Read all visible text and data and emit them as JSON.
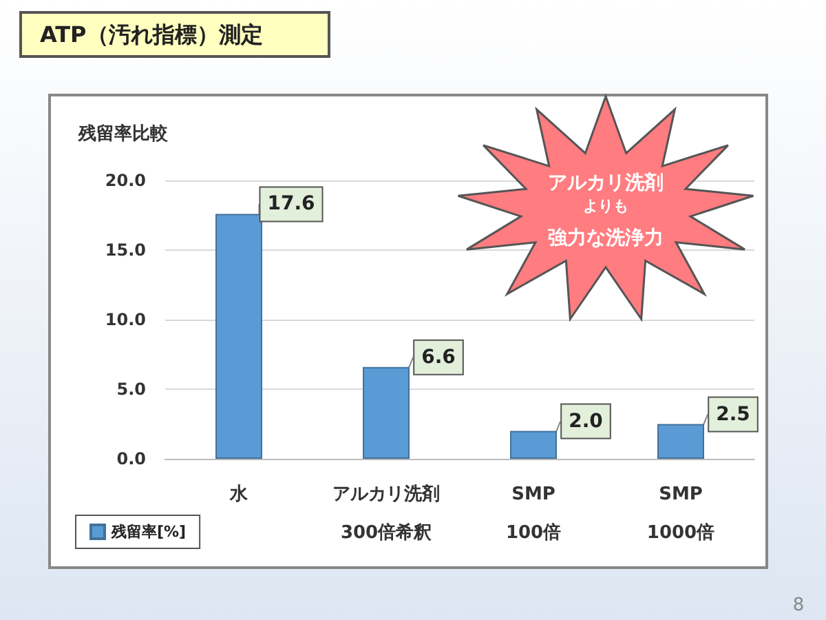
{
  "chart_data": {
    "type": "bar",
    "title": "ATP（汚れ指標）測定",
    "subtitle": "残留率比較",
    "categories": [
      "水",
      "アルカリ洗剤\n300倍希釈",
      "SMP\n100倍",
      "SMP\n1000倍"
    ],
    "series": [
      {
        "name": "残留率[%]",
        "color": "#5b9bd5",
        "values": [
          17.6,
          6.6,
          2.0,
          2.5
        ],
        "value_labels": [
          "17.6",
          "6.6",
          "2.0",
          "2.5"
        ]
      }
    ],
    "ylim": [
      0,
      20
    ],
    "yticks": [
      {
        "value": 0,
        "label": "0.0"
      },
      {
        "value": 5,
        "label": "5.0"
      },
      {
        "value": 10,
        "label": "10.0"
      },
      {
        "value": 15,
        "label": "15.0"
      },
      {
        "value": 20,
        "label": "20.0"
      }
    ],
    "grid": "y",
    "legend": "bottom left",
    "annotations": [
      "アルカリ洗剤",
      "よりも",
      "強力な洗浄力",
      "8"
    ]
  }
}
